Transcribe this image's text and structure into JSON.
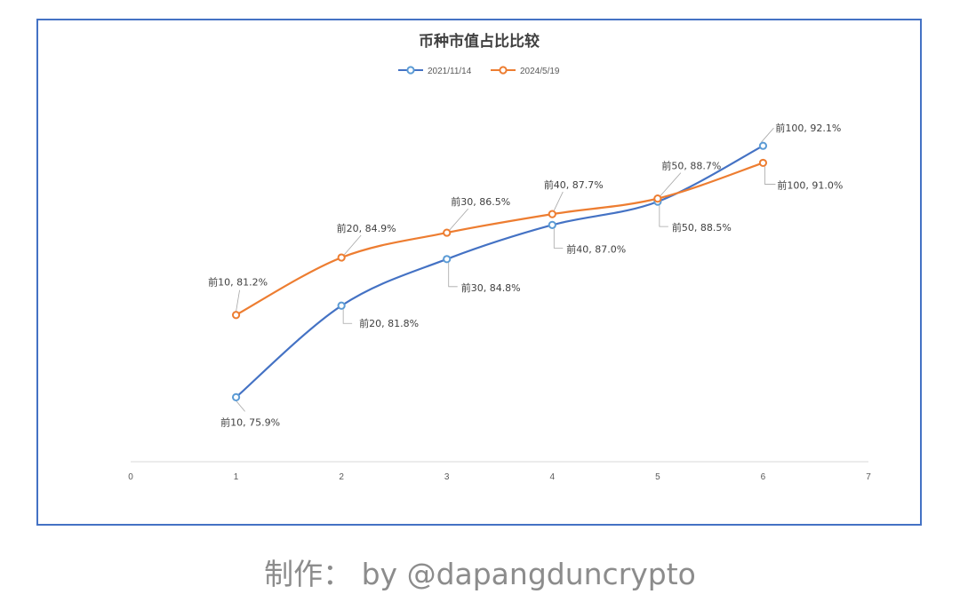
{
  "chart_data": {
    "type": "line",
    "title": "币种市值占比比较",
    "legend_position": "top",
    "grid": false,
    "xlim": [
      0,
      7
    ],
    "ylim": [
      70,
      95
    ],
    "x_ticks": [
      0,
      1,
      2,
      3,
      4,
      5,
      6,
      7
    ],
    "x": [
      1,
      2,
      3,
      4,
      5,
      6
    ],
    "series": [
      {
        "name": "2021/11/14",
        "color": "#4472c4",
        "marker_color": "#5b9bd5",
        "values": [
          75.9,
          81.8,
          84.8,
          87.0,
          88.5,
          92.1
        ],
        "labels": [
          "前10, 75.9%",
          "前20, 81.8%",
          "前30, 84.8%",
          "前40, 87.0%",
          "前50, 88.5%",
          "前100, 92.1%"
        ]
      },
      {
        "name": "2024/5/19",
        "color": "#ed7d31",
        "marker_color": "#ed7d31",
        "values": [
          81.2,
          84.9,
          86.5,
          87.7,
          88.7,
          91.0
        ],
        "labels": [
          "前10, 81.2%",
          "前20, 84.9%",
          "前30, 86.5%",
          "前40, 87.7%",
          "前50, 88.7%",
          "前100, 91.0%"
        ]
      }
    ]
  },
  "credit": "制作： by @dapangduncrypto"
}
